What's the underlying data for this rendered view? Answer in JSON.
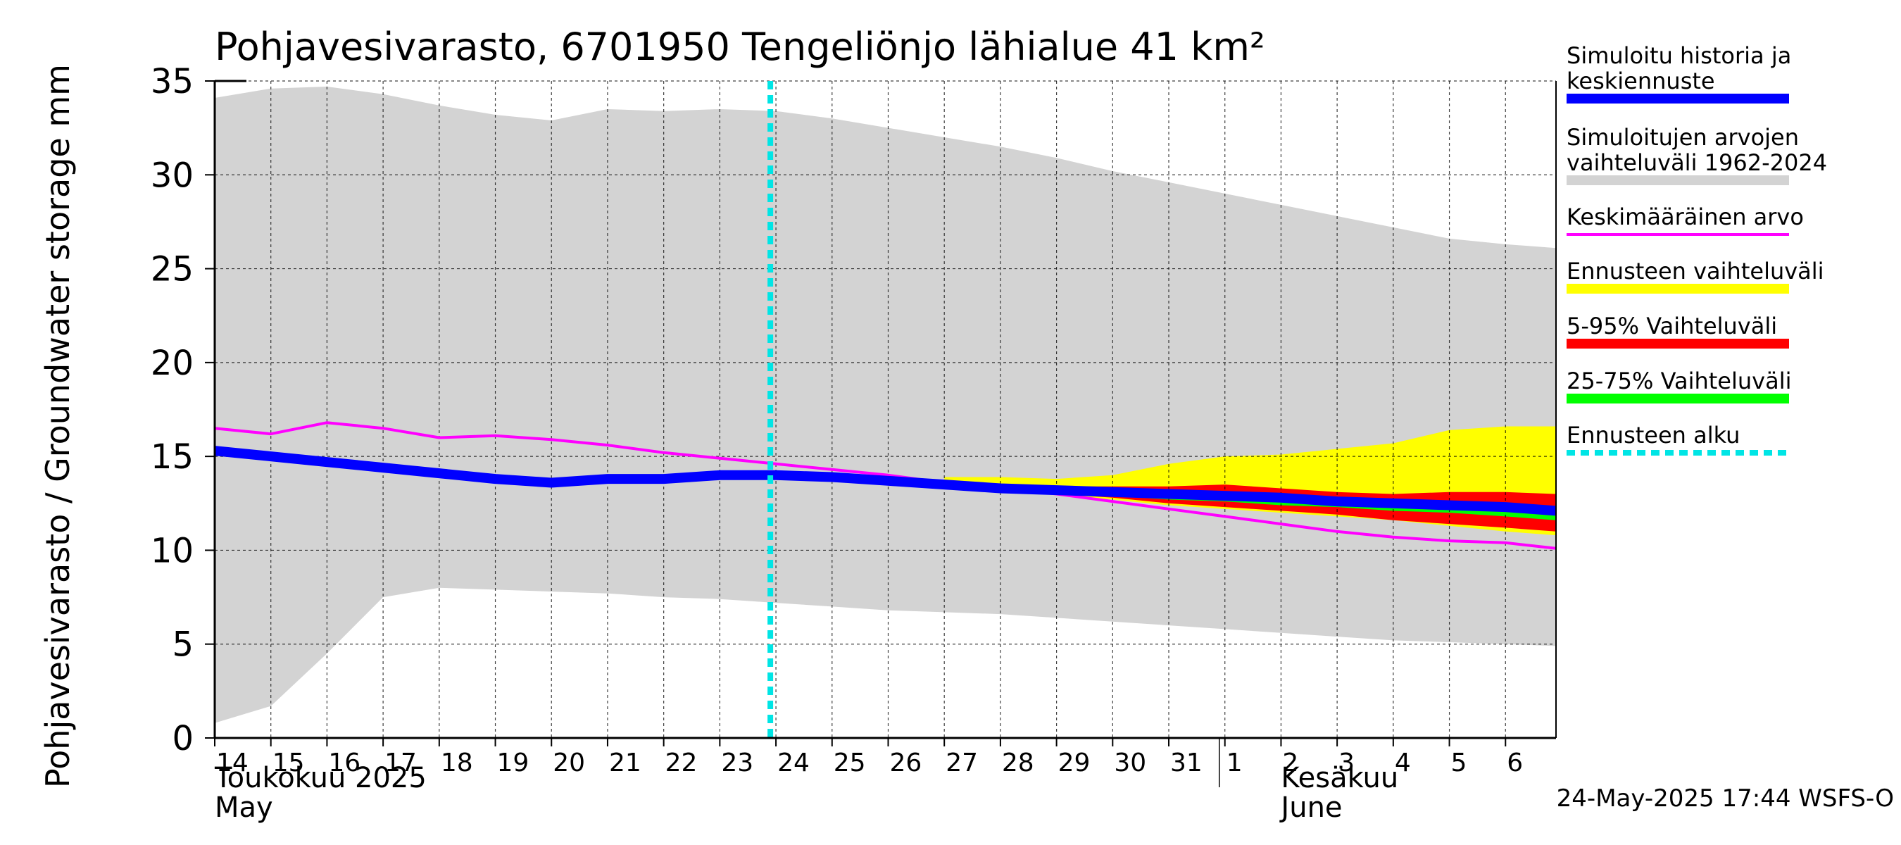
{
  "chart_data": {
    "type": "area",
    "title": "Pohjavesivarasto, 6701950 Tengeliönjo lähialue 41 km²",
    "ylabel": "Pohjavesivarasto / Groundwater storage   mm",
    "ylim": [
      0,
      35
    ],
    "yticks": [
      0,
      5,
      10,
      15,
      20,
      25,
      30,
      35
    ],
    "grid": true,
    "x_day_labels": [
      "14",
      "15",
      "16",
      "17",
      "18",
      "19",
      "20",
      "21",
      "22",
      "23",
      "24",
      "25",
      "26",
      "27",
      "28",
      "29",
      "30",
      "31",
      "1",
      "2",
      "3",
      "4",
      "5",
      "6"
    ],
    "month_labels": [
      {
        "line1": "Toukokuu  2025",
        "line2": "May"
      },
      {
        "line1": "Kesäkuu",
        "line2": "June"
      }
    ],
    "forecast_start_index": 9.9,
    "history_range": {
      "x": [
        0,
        1,
        2,
        3,
        4,
        5,
        6,
        7,
        8,
        9,
        10,
        11,
        12,
        13,
        14,
        15,
        16,
        17,
        18,
        19,
        20,
        21,
        22,
        23,
        23.9
      ],
      "upper": [
        34.1,
        34.6,
        34.7,
        34.3,
        33.7,
        33.2,
        32.9,
        33.5,
        33.4,
        33.5,
        33.4,
        33.0,
        32.5,
        32.0,
        31.5,
        30.9,
        30.2,
        29.6,
        29.0,
        28.4,
        27.8,
        27.2,
        26.6,
        26.3,
        26.1
      ],
      "lower": [
        0.8,
        1.7,
        4.5,
        7.5,
        8.0,
        7.9,
        7.8,
        7.7,
        7.5,
        7.4,
        7.2,
        7.0,
        6.8,
        6.7,
        6.6,
        6.4,
        6.2,
        6.0,
        5.8,
        5.6,
        5.4,
        5.2,
        5.1,
        5.0,
        4.9
      ]
    },
    "forecast_x": [
      13,
      14,
      15,
      16,
      17,
      18,
      19,
      20,
      21,
      22,
      23,
      23.9
    ],
    "forecast_range": {
      "upper": [
        13.9,
        13.9,
        13.8,
        14.0,
        14.6,
        15.0,
        15.1,
        15.4,
        15.7,
        16.4,
        16.6,
        16.6
      ],
      "lower": [
        13.3,
        13.2,
        13.0,
        12.7,
        12.4,
        12.2,
        12.0,
        11.8,
        11.6,
        11.3,
        11.0,
        10.8
      ]
    },
    "range_5_95": {
      "upper": [
        13.6,
        13.5,
        13.4,
        13.4,
        13.4,
        13.5,
        13.3,
        13.1,
        13.0,
        13.1,
        13.1,
        13.0
      ],
      "lower": [
        13.3,
        13.2,
        13.0,
        12.8,
        12.5,
        12.3,
        12.1,
        11.9,
        11.6,
        11.4,
        11.2,
        11.0
      ]
    },
    "range_25_75": {
      "upper": [
        13.5,
        13.4,
        13.2,
        13.1,
        13.0,
        12.9,
        12.8,
        12.6,
        12.5,
        12.4,
        12.3,
        12.2
      ],
      "lower": [
        13.4,
        13.3,
        13.1,
        12.9,
        12.7,
        12.6,
        12.4,
        12.3,
        12.1,
        12.0,
        11.8,
        11.6
      ]
    },
    "series": [
      {
        "name": "Simuloitu historia ja keskiennuste",
        "color": "#0000ff",
        "x": [
          0,
          1,
          2,
          3,
          4,
          5,
          6,
          7,
          8,
          9,
          10,
          11,
          12,
          13,
          14,
          15,
          16,
          17,
          18,
          19,
          20,
          21,
          22,
          23,
          23.9
        ],
        "values": [
          15.3,
          15.0,
          14.7,
          14.4,
          14.1,
          13.8,
          13.6,
          13.8,
          13.8,
          14.0,
          14.0,
          13.9,
          13.7,
          13.5,
          13.3,
          13.2,
          13.1,
          13.0,
          12.9,
          12.8,
          12.6,
          12.5,
          12.4,
          12.3,
          12.1
        ]
      },
      {
        "name": "Keskimääräinen arvo",
        "color": "#ff00ff",
        "x": [
          0,
          1,
          2,
          3,
          4,
          5,
          6,
          7,
          8,
          9,
          10,
          11,
          12,
          13,
          14,
          15,
          16,
          17,
          18,
          19,
          20,
          21,
          22,
          23,
          23.9
        ],
        "values": [
          16.5,
          16.2,
          16.8,
          16.5,
          16.0,
          16.1,
          15.9,
          15.6,
          15.2,
          14.9,
          14.6,
          14.3,
          14.0,
          13.6,
          13.3,
          13.0,
          12.6,
          12.2,
          11.8,
          11.4,
          11.0,
          10.7,
          10.5,
          10.4,
          10.1
        ]
      }
    ],
    "legend": [
      {
        "label": "Simuloitu historia ja keskiennuste",
        "color": "#0000ff",
        "style": "thick"
      },
      {
        "label": "Simuloitujen arvojen vaihteluväli 1962-2024",
        "color": "#d3d3d3",
        "style": "thick"
      },
      {
        "label": "Keskimääräinen arvo",
        "color": "#ff00ff",
        "style": "thin"
      },
      {
        "label": "Ennusteen vaihteluväli",
        "color": "#ffff00",
        "style": "thick"
      },
      {
        "label": "5-95% Vaihteluväli",
        "color": "#ff0000",
        "style": "thick"
      },
      {
        "label": "25-75% Vaihteluväli",
        "color": "#00ff00",
        "style": "thick"
      },
      {
        "label": "Ennusteen alku",
        "color": "#00e5e5",
        "style": "dotted"
      }
    ],
    "legend_position": "right",
    "footer": "24-May-2025 17:44 WSFS-O"
  }
}
